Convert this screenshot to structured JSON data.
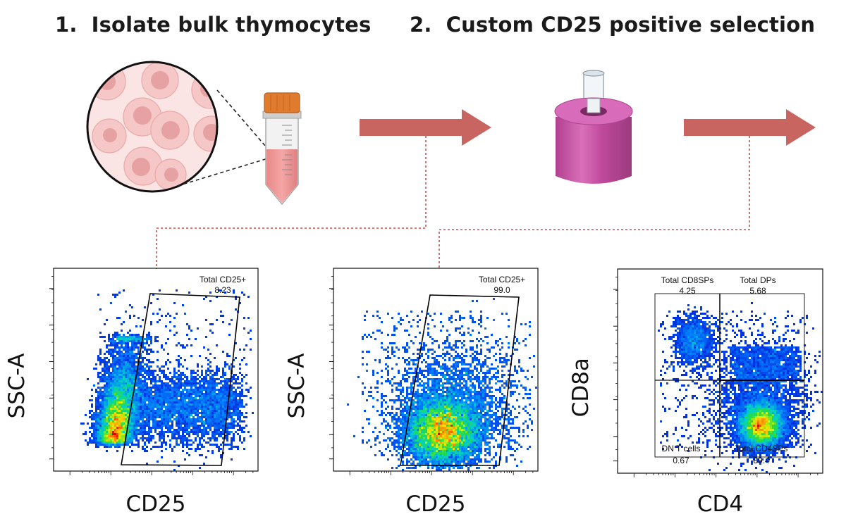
{
  "steps": [
    {
      "number": "1.",
      "label": "Isolate bulk thymocytes"
    },
    {
      "number": "2.",
      "label": "Custom CD25 positive selection"
    }
  ],
  "icons": {
    "cells": "cell-magnifier-icon",
    "tube": "conical-tube-icon",
    "magnet": "magnet-column-icon",
    "arrow": "right-arrow-icon"
  },
  "colors": {
    "arrow": "#c96560",
    "connector": "#c8524c",
    "tube_cap": "#e07b2e",
    "magnet": "#c04a9c",
    "cell_fill": "#f2c4c4",
    "nucleus": "#e39b9e"
  },
  "plots": [
    {
      "id": "plot1",
      "xlabel": "CD25",
      "ylabel": "SSC-A",
      "gates": [
        {
          "name": "Total CD25+",
          "value": "8.23"
        }
      ]
    },
    {
      "id": "plot2",
      "xlabel": "CD25",
      "ylabel": "SSC-A",
      "gates": [
        {
          "name": "Total CD25+",
          "value": "99.0"
        }
      ]
    },
    {
      "id": "plot3",
      "xlabel": "CD4",
      "ylabel": "CD8a",
      "gates": [
        {
          "name": "Total CD8SPs",
          "value": "4.25"
        },
        {
          "name": "Total DPs",
          "value": "5.68"
        },
        {
          "name": "DN T cells",
          "value": "0.67"
        },
        {
          "name": "Total CD4SPs",
          "value": "89.4"
        }
      ]
    }
  ]
}
